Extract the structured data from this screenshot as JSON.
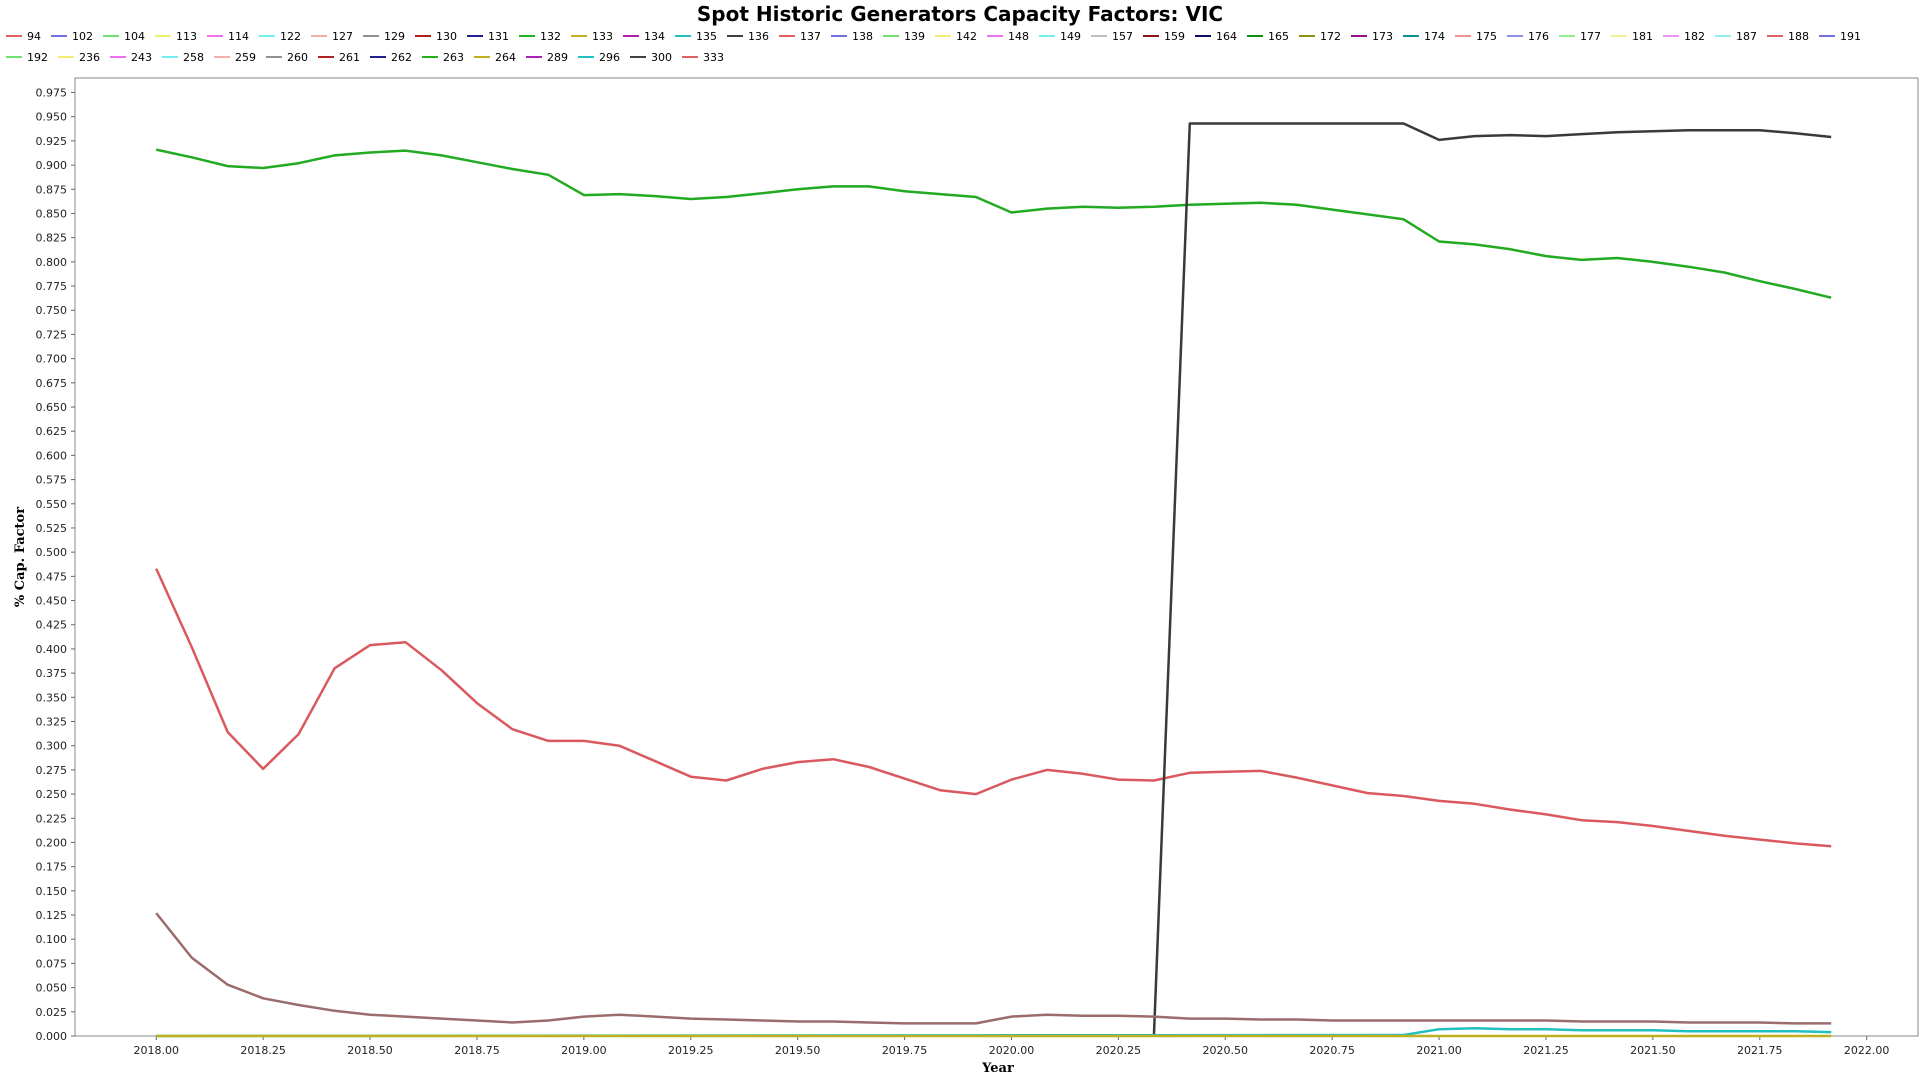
{
  "chart_data": {
    "type": "line",
    "title": "Spot Historic Generators Capacity Factors: VIC",
    "xlabel": "Year",
    "ylabel": "% Cap. Factor",
    "xlim": [
      2017.81,
      2022.12
    ],
    "ylim": [
      0,
      0.99
    ],
    "x_ticks": [
      "2018.00",
      "2018.25",
      "2018.50",
      "2018.75",
      "2019.00",
      "2019.25",
      "2019.50",
      "2019.75",
      "2020.00",
      "2020.25",
      "2020.50",
      "2020.75",
      "2021.00",
      "2021.25",
      "2021.50",
      "2021.75",
      "2022.00"
    ],
    "y_ticks": [
      "0.000",
      "0.025",
      "0.050",
      "0.075",
      "0.100",
      "0.125",
      "0.150",
      "0.175",
      "0.200",
      "0.225",
      "0.250",
      "0.275",
      "0.300",
      "0.325",
      "0.350",
      "0.375",
      "0.400",
      "0.425",
      "0.450",
      "0.475",
      "0.500",
      "0.525",
      "0.550",
      "0.575",
      "0.600",
      "0.625",
      "0.650",
      "0.675",
      "0.700",
      "0.725",
      "0.750",
      "0.775",
      "0.800",
      "0.825",
      "0.850",
      "0.875",
      "0.900",
      "0.925",
      "0.950",
      "0.975"
    ],
    "grid": false,
    "legend_position": "top",
    "legend": [
      {
        "name": "94",
        "color": "#e06060"
      },
      {
        "name": "102",
        "color": "#7070e0"
      },
      {
        "name": "104",
        "color": "#70e070"
      },
      {
        "name": "113",
        "color": "#f0f070"
      },
      {
        "name": "114",
        "color": "#f070f0"
      },
      {
        "name": "122",
        "color": "#70f0f0"
      },
      {
        "name": "127",
        "color": "#f0b0b0"
      },
      {
        "name": "129",
        "color": "#909090"
      },
      {
        "name": "130",
        "color": "#b02020"
      },
      {
        "name": "131",
        "color": "#202090"
      },
      {
        "name": "132",
        "color": "#20b020"
      },
      {
        "name": "133",
        "color": "#c0b020"
      },
      {
        "name": "134",
        "color": "#b020b0"
      },
      {
        "name": "135",
        "color": "#20c0c0"
      },
      {
        "name": "136",
        "color": "#404040"
      },
      {
        "name": "137",
        "color": "#e06060"
      },
      {
        "name": "138",
        "color": "#7070e0"
      },
      {
        "name": "139",
        "color": "#70e070"
      },
      {
        "name": "142",
        "color": "#f0f070"
      },
      {
        "name": "148",
        "color": "#f070f0"
      },
      {
        "name": "149",
        "color": "#70f0f0"
      },
      {
        "name": "157",
        "color": "#c0c0c0"
      },
      {
        "name": "159",
        "color": "#901010"
      },
      {
        "name": "164",
        "color": "#101070"
      },
      {
        "name": "165",
        "color": "#109010"
      },
      {
        "name": "172",
        "color": "#909010"
      },
      {
        "name": "173",
        "color": "#901090"
      },
      {
        "name": "174",
        "color": "#109090"
      },
      {
        "name": "175",
        "color": "#f09090"
      },
      {
        "name": "176",
        "color": "#9090f0"
      },
      {
        "name": "177",
        "color": "#90f090"
      },
      {
        "name": "181",
        "color": "#f0f090"
      },
      {
        "name": "182",
        "color": "#f090f0"
      },
      {
        "name": "187",
        "color": "#90f0f0"
      },
      {
        "name": "188",
        "color": "#e06060"
      },
      {
        "name": "191",
        "color": "#7070e0"
      },
      {
        "name": "192",
        "color": "#70e070"
      },
      {
        "name": "236",
        "color": "#f0f070"
      },
      {
        "name": "243",
        "color": "#f070f0"
      },
      {
        "name": "258",
        "color": "#70f0f0"
      },
      {
        "name": "259",
        "color": "#f0b0b0"
      },
      {
        "name": "260",
        "color": "#909090"
      },
      {
        "name": "261",
        "color": "#b02020"
      },
      {
        "name": "262",
        "color": "#202090"
      },
      {
        "name": "263",
        "color": "#20b020"
      },
      {
        "name": "264",
        "color": "#c0b020"
      },
      {
        "name": "289",
        "color": "#b020b0"
      },
      {
        "name": "296",
        "color": "#20c0c0"
      },
      {
        "name": "300",
        "color": "#404040"
      },
      {
        "name": "333",
        "color": "#e06060"
      }
    ],
    "series": [
      {
        "name": "132",
        "color": "#22aa22",
        "x": [
          2018.0,
          2018.083,
          2018.167,
          2018.25,
          2018.333,
          2018.417,
          2018.5,
          2018.583,
          2018.667,
          2018.75,
          2018.833,
          2018.917,
          2019.0,
          2019.083,
          2019.167,
          2019.25,
          2019.333,
          2019.417,
          2019.5,
          2019.583,
          2019.667,
          2019.75,
          2019.833,
          2019.917,
          2020.0,
          2020.083,
          2020.167,
          2020.25,
          2020.333,
          2020.417,
          2020.5,
          2020.583,
          2020.667,
          2020.75,
          2020.833,
          2020.917,
          2021.0,
          2021.083,
          2021.167,
          2021.25,
          2021.333,
          2021.417,
          2021.5,
          2021.583,
          2021.667,
          2021.75,
          2021.833,
          2021.917
        ],
        "y": [
          0.916,
          0.908,
          0.899,
          0.897,
          0.902,
          0.91,
          0.913,
          0.915,
          0.91,
          0.903,
          0.896,
          0.89,
          0.869,
          0.87,
          0.868,
          0.865,
          0.867,
          0.871,
          0.875,
          0.878,
          0.878,
          0.873,
          0.87,
          0.867,
          0.851,
          0.855,
          0.857,
          0.856,
          0.857,
          0.859,
          0.86,
          0.861,
          0.859,
          0.854,
          0.849,
          0.844,
          0.821,
          0.818,
          0.813,
          0.806,
          0.802,
          0.804,
          0.8,
          0.795,
          0.789,
          0.78,
          0.772,
          0.763
        ]
      },
      {
        "name": "94",
        "color": "#d9595f",
        "x": [
          2018.0,
          2018.083,
          2018.167,
          2018.25,
          2018.333,
          2018.417,
          2018.5,
          2018.583,
          2018.667,
          2018.75,
          2018.833,
          2018.917,
          2019.0,
          2019.083,
          2019.167,
          2019.25,
          2019.333,
          2019.417,
          2019.5,
          2019.583,
          2019.667,
          2019.75,
          2019.833,
          2019.917,
          2020.0,
          2020.083,
          2020.167,
          2020.25,
          2020.333,
          2020.417,
          2020.5,
          2020.583,
          2020.667,
          2020.75,
          2020.833,
          2020.917,
          2021.0,
          2021.083,
          2021.167,
          2021.25,
          2021.333,
          2021.417,
          2021.5,
          2021.583,
          2021.667,
          2021.75,
          2021.833,
          2021.917
        ],
        "y": [
          0.483,
          0.402,
          0.314,
          0.276,
          0.312,
          0.38,
          0.404,
          0.407,
          0.378,
          0.344,
          0.317,
          0.305,
          0.305,
          0.3,
          0.284,
          0.268,
          0.264,
          0.276,
          0.283,
          0.286,
          0.278,
          0.266,
          0.254,
          0.25,
          0.265,
          0.275,
          0.271,
          0.265,
          0.264,
          0.272,
          0.273,
          0.274,
          0.267,
          0.259,
          0.251,
          0.248,
          0.243,
          0.24,
          0.234,
          0.229,
          0.223,
          0.221,
          0.217,
          0.212,
          0.207,
          0.203,
          0.199,
          0.196
        ]
      },
      {
        "name": "300",
        "color": "#3a3a3a",
        "x": [
          2020.333,
          2020.417,
          2020.5,
          2020.583,
          2020.667,
          2020.75,
          2020.833,
          2020.917,
          2021.0,
          2021.083,
          2021.167,
          2021.25,
          2021.333,
          2021.417,
          2021.5,
          2021.583,
          2021.667,
          2021.75,
          2021.833,
          2021.917
        ],
        "y": [
          0.0,
          0.943,
          0.943,
          0.943,
          0.943,
          0.943,
          0.943,
          0.943,
          0.926,
          0.93,
          0.931,
          0.93,
          0.932,
          0.934,
          0.935,
          0.936,
          0.936,
          0.936,
          0.933,
          0.929
        ]
      },
      {
        "name": "129",
        "color": "#9b6c6c",
        "x": [
          2018.0,
          2018.083,
          2018.167,
          2018.25,
          2018.333,
          2018.417,
          2018.5,
          2018.583,
          2018.667,
          2018.75,
          2018.833,
          2018.917,
          2019.0,
          2019.083,
          2019.167,
          2019.25,
          2019.333,
          2019.417,
          2019.5,
          2019.583,
          2019.667,
          2019.75,
          2019.833,
          2019.917,
          2020.0,
          2020.083,
          2020.167,
          2020.25,
          2020.333,
          2020.417,
          2020.5,
          2020.583,
          2020.667,
          2020.75,
          2020.833,
          2020.917,
          2021.0,
          2021.083,
          2021.167,
          2021.25,
          2021.333,
          2021.417,
          2021.5,
          2021.583,
          2021.667,
          2021.75,
          2021.833,
          2021.917
        ],
        "y": [
          0.127,
          0.081,
          0.053,
          0.039,
          0.032,
          0.026,
          0.022,
          0.02,
          0.018,
          0.016,
          0.014,
          0.016,
          0.02,
          0.022,
          0.02,
          0.018,
          0.017,
          0.016,
          0.015,
          0.015,
          0.014,
          0.013,
          0.013,
          0.013,
          0.02,
          0.022,
          0.021,
          0.021,
          0.02,
          0.018,
          0.018,
          0.017,
          0.017,
          0.016,
          0.016,
          0.016,
          0.016,
          0.016,
          0.016,
          0.016,
          0.015,
          0.015,
          0.015,
          0.014,
          0.014,
          0.014,
          0.013,
          0.013
        ]
      },
      {
        "name": "296",
        "color": "#20c0c0",
        "x": [
          2018.0,
          2020.917,
          2021.0,
          2021.083,
          2021.167,
          2021.25,
          2021.333,
          2021.417,
          2021.5,
          2021.583,
          2021.667,
          2021.75,
          2021.833,
          2021.917
        ],
        "y": [
          0.0,
          0.001,
          0.007,
          0.008,
          0.007,
          0.007,
          0.006,
          0.006,
          0.006,
          0.005,
          0.005,
          0.005,
          0.005,
          0.004
        ]
      },
      {
        "name": "133",
        "color": "#c0b020",
        "x": [
          2018.0,
          2021.917
        ],
        "y": [
          0.0,
          0.0
        ]
      }
    ]
  }
}
